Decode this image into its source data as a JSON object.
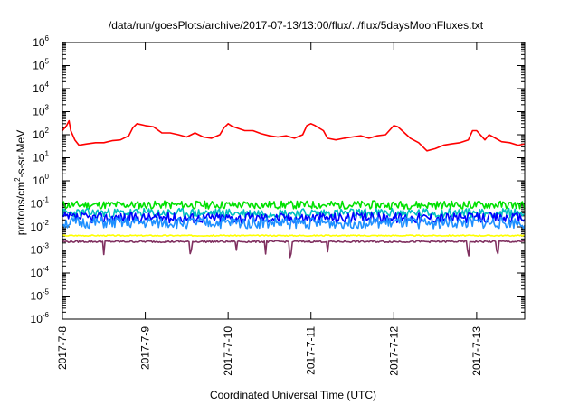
{
  "chart_data": {
    "type": "line",
    "title": "/data/run/goesPlots/archive/2017-07-13/13:00/flux/../flux/5daysMoonFluxes.txt",
    "xlabel": "Coordinated Universal Time (UTC)",
    "ylabel": {
      "base": "protons/cm",
      "sup": "2",
      "rest": "-s-sr-MeV"
    },
    "yscale": "log",
    "ylim": [
      1e-06,
      1000000.0
    ],
    "xlim": [
      0,
      5.58
    ],
    "x_unit": "days since 2017-7-8 00:00 UTC",
    "y_ticks": [
      {
        "exp": -6,
        "label": "10",
        "sup": "-6"
      },
      {
        "exp": -5,
        "label": "10",
        "sup": "-5"
      },
      {
        "exp": -4,
        "label": "10",
        "sup": "-4"
      },
      {
        "exp": -3,
        "label": "10",
        "sup": "-3"
      },
      {
        "exp": -2,
        "label": "10",
        "sup": "-2"
      },
      {
        "exp": -1,
        "label": "10",
        "sup": "-1"
      },
      {
        "exp": 0,
        "label": "10",
        "sup": "0"
      },
      {
        "exp": 1,
        "label": "10",
        "sup": "1"
      },
      {
        "exp": 2,
        "label": "10",
        "sup": "2"
      },
      {
        "exp": 3,
        "label": "10",
        "sup": "3"
      },
      {
        "exp": 4,
        "label": "10",
        "sup": "4"
      },
      {
        "exp": 5,
        "label": "10",
        "sup": "5"
      },
      {
        "exp": 6,
        "label": "10",
        "sup": "6"
      }
    ],
    "x_ticks": [
      {
        "x": 0,
        "label": "2017-7-8"
      },
      {
        "x": 1,
        "label": "2017-7-9"
      },
      {
        "x": 2,
        "label": "2017-7-10"
      },
      {
        "x": 3,
        "label": "2017-7-11"
      },
      {
        "x": 4,
        "label": "2017-7-12"
      },
      {
        "x": 5,
        "label": "2017-7-13"
      }
    ],
    "grid": false,
    "legend": "none",
    "series": [
      {
        "color": "#ff0000",
        "points": [
          [
            0,
            150
          ],
          [
            0.05,
            250
          ],
          [
            0.08,
            400
          ],
          [
            0.1,
            150
          ],
          [
            0.15,
            60
          ],
          [
            0.2,
            35
          ],
          [
            0.3,
            40
          ],
          [
            0.4,
            45
          ],
          [
            0.5,
            45
          ],
          [
            0.6,
            55
          ],
          [
            0.7,
            60
          ],
          [
            0.8,
            90
          ],
          [
            0.85,
            200
          ],
          [
            0.9,
            300
          ],
          [
            1.0,
            250
          ],
          [
            1.1,
            220
          ],
          [
            1.2,
            120
          ],
          [
            1.3,
            120
          ],
          [
            1.4,
            100
          ],
          [
            1.5,
            80
          ],
          [
            1.6,
            120
          ],
          [
            1.7,
            80
          ],
          [
            1.8,
            70
          ],
          [
            1.9,
            100
          ],
          [
            1.95,
            200
          ],
          [
            2.0,
            300
          ],
          [
            2.05,
            230
          ],
          [
            2.2,
            150
          ],
          [
            2.3,
            150
          ],
          [
            2.4,
            110
          ],
          [
            2.5,
            90
          ],
          [
            2.6,
            80
          ],
          [
            2.7,
            90
          ],
          [
            2.8,
            70
          ],
          [
            2.9,
            100
          ],
          [
            2.95,
            250
          ],
          [
            3.0,
            300
          ],
          [
            3.05,
            250
          ],
          [
            3.15,
            150
          ],
          [
            3.2,
            70
          ],
          [
            3.3,
            60
          ],
          [
            3.4,
            70
          ],
          [
            3.5,
            80
          ],
          [
            3.6,
            90
          ],
          [
            3.7,
            70
          ],
          [
            3.8,
            90
          ],
          [
            3.9,
            100
          ],
          [
            4.0,
            250
          ],
          [
            4.05,
            220
          ],
          [
            4.1,
            150
          ],
          [
            4.2,
            70
          ],
          [
            4.3,
            45
          ],
          [
            4.4,
            20
          ],
          [
            4.5,
            25
          ],
          [
            4.6,
            35
          ],
          [
            4.7,
            40
          ],
          [
            4.8,
            45
          ],
          [
            4.9,
            60
          ],
          [
            4.95,
            150
          ],
          [
            5.0,
            150
          ],
          [
            5.1,
            60
          ],
          [
            5.15,
            100
          ],
          [
            5.2,
            80
          ],
          [
            5.3,
            50
          ],
          [
            5.4,
            45
          ],
          [
            5.5,
            35
          ],
          [
            5.58,
            40
          ]
        ]
      },
      {
        "color": "#00e000",
        "base": 0.09,
        "amp": 0.35,
        "seed": 11
      },
      {
        "color": "#00c0c0",
        "base": 0.04,
        "amp": 0.4,
        "seed": 23
      },
      {
        "color": "#0000ff",
        "base": 0.025,
        "amp": 0.45,
        "seed": 37
      },
      {
        "color": "#1e90ff",
        "base": 0.015,
        "amp": 0.5,
        "seed": 51
      },
      {
        "color": "#ffff00",
        "base": 0.0042,
        "amp": 0.05,
        "seed": 67
      },
      {
        "color": "#803060",
        "base": 0.0023,
        "amp": 0.08,
        "seed": 79,
        "dips": [
          0.5,
          1.55,
          2.1,
          2.45,
          2.75,
          3.2,
          4.9,
          5.25
        ]
      }
    ]
  }
}
